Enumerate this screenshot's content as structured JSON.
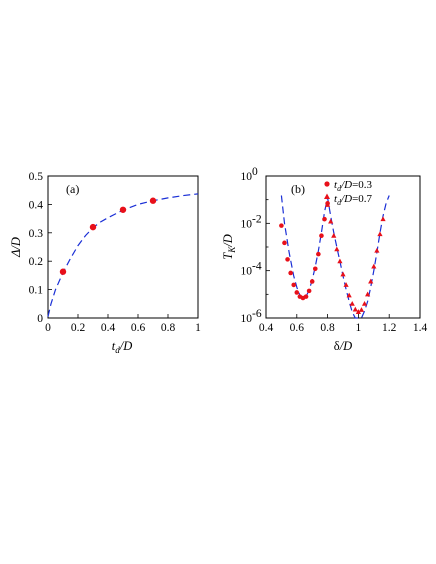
{
  "chart_data": [
    {
      "type": "scatter",
      "panel_label": "(a)",
      "xlabel": "t_d/D",
      "ylabel": "Δ/D",
      "xlim": [
        0,
        1
      ],
      "ylim": [
        0,
        0.5
      ],
      "xticks": [
        "0",
        "0.2",
        "0.4",
        "0.6",
        "0.8",
        "1"
      ],
      "yticks": [
        "0",
        "0.1",
        "0.2",
        "0.3",
        "0.4",
        "0.5"
      ],
      "series": [
        {
          "kind": "points",
          "color": "#e8101a",
          "x": [
            0.1,
            0.3,
            0.5,
            0.7
          ],
          "y": [
            0.163,
            0.32,
            0.381,
            0.413
          ]
        },
        {
          "kind": "dashed-fit",
          "color": "#1a2fd6",
          "x": [
            0,
            0.02,
            0.05,
            0.1,
            0.15,
            0.2,
            0.25,
            0.3,
            0.35,
            0.4,
            0.5,
            0.6,
            0.7,
            0.8,
            0.9,
            1.0
          ],
          "y": [
            0.005,
            0.05,
            0.1,
            0.16,
            0.21,
            0.255,
            0.29,
            0.318,
            0.338,
            0.353,
            0.38,
            0.4,
            0.413,
            0.423,
            0.431,
            0.437
          ]
        }
      ],
      "grid": false
    },
    {
      "type": "scatter",
      "panel_label": "(b)",
      "xlabel": "δ/D",
      "ylabel": "T_K/D",
      "yscale": "log",
      "xlim": [
        0.4,
        1.4
      ],
      "ylim": [
        1e-06,
        1
      ],
      "xticks": [
        "0.4",
        "0.6",
        "0.8",
        "1",
        "1.2",
        "1.4"
      ],
      "yticks": [
        "10^-6",
        "10^-4",
        "10^-2",
        "10^0"
      ],
      "legend_position": "top-right",
      "series": [
        {
          "name": "t_d/D=0.3",
          "kind": "points",
          "marker": "circle",
          "color": "#e8101a",
          "x": [
            0.5,
            0.52,
            0.54,
            0.56,
            0.58,
            0.6,
            0.62,
            0.64,
            0.66,
            0.68,
            0.7,
            0.72,
            0.74,
            0.76,
            0.78,
            0.8
          ],
          "y": [
            0.008,
            0.0015,
            0.0003,
            8e-05,
            2.5e-05,
            1.2e-05,
            8e-06,
            7e-06,
            8e-06,
            1.4e-05,
            3.5e-05,
            0.00012,
            0.0005,
            0.003,
            0.015,
            0.07
          ]
        },
        {
          "name": "t_d/D=0.7",
          "kind": "points",
          "marker": "triangle",
          "color": "#e8101a",
          "x": [
            0.8,
            0.82,
            0.84,
            0.86,
            0.88,
            0.9,
            0.92,
            0.94,
            0.96,
            0.98,
            1.0,
            1.02,
            1.04,
            1.06,
            1.08,
            1.1,
            1.12,
            1.14,
            1.16
          ],
          "y": [
            0.06,
            0.012,
            0.003,
            0.0008,
            0.00025,
            7e-05,
            2.5e-05,
            9e-06,
            4e-06,
            2.3e-06,
            1.8e-06,
            2.2e-06,
            4e-06,
            1e-05,
            3.5e-05,
            0.00015,
            0.0007,
            0.0035,
            0.015
          ]
        },
        {
          "kind": "dashed-fit",
          "color": "#1a2fd6",
          "x": [
            0.5,
            0.52,
            0.55,
            0.58,
            0.6,
            0.62,
            0.64,
            0.66,
            0.68,
            0.7,
            0.72,
            0.74,
            0.76,
            0.78,
            0.8,
            0.82,
            0.84,
            0.86,
            0.88,
            0.9,
            0.92,
            0.94,
            0.96,
            0.98,
            1.0,
            1.02,
            1.04,
            1.06,
            1.08,
            1.1,
            1.12,
            1.14,
            1.16,
            1.18,
            1.2
          ],
          "y": [
            0.15,
            0.01,
            0.0006,
            6e-05,
            2e-05,
            9e-06,
            7e-06,
            8e-06,
            1.5e-05,
            4e-05,
            0.00015,
            0.0007,
            0.004,
            0.03,
            0.12,
            0.02,
            0.004,
            0.001,
            0.00025,
            6e-05,
            1.6e-05,
            5e-06,
            1.8e-06,
            9e-07,
            8e-07,
            1e-06,
            2e-06,
            5e-06,
            2e-05,
            0.0001,
            0.0006,
            0.004,
            0.02,
            0.07,
            0.15
          ]
        }
      ],
      "grid": false
    }
  ]
}
